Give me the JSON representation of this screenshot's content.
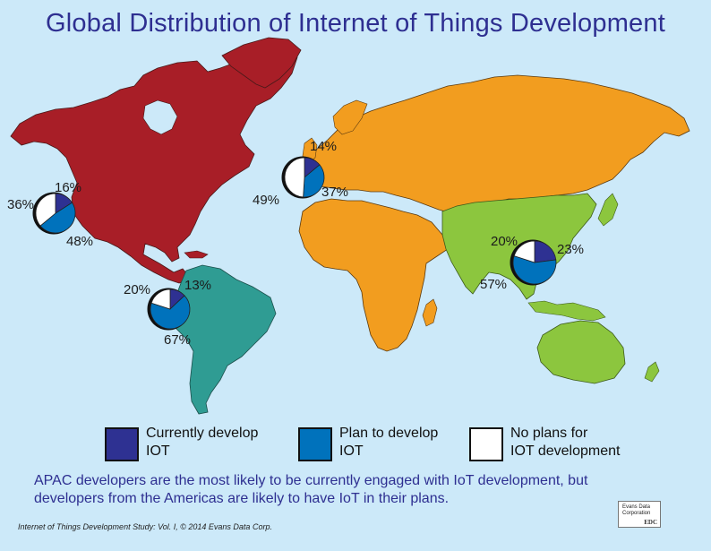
{
  "title": "Global Distribution of Internet of Things Development",
  "colors": {
    "ocean": "#cce9f9",
    "north_america": "#a81e27",
    "south_america": "#2f9c93",
    "europe_africa_russia": "#f29d1f",
    "apac": "#8cc63e",
    "currently_develop": "#2e3192",
    "plan_to_develop": "#0072bc",
    "no_plans": "#ffffff"
  },
  "regions": [
    {
      "name": "North America",
      "currently": "16%",
      "plan": "48%",
      "no_plans": "36%",
      "values": [
        16,
        48,
        36
      ]
    },
    {
      "name": "Europe/Middle East/Africa",
      "currently": "14%",
      "plan": "37%",
      "no_plans": "49%",
      "values": [
        14,
        37,
        49
      ]
    },
    {
      "name": "South America",
      "currently": "13%",
      "plan": "67%",
      "no_plans": "20%",
      "values": [
        13,
        67,
        20
      ]
    },
    {
      "name": "APAC",
      "currently": "23%",
      "plan": "57%",
      "no_plans": "20%",
      "values": [
        23,
        57,
        20
      ]
    }
  ],
  "legend": {
    "currently": {
      "line1": "Currently develop",
      "line2": "IOT"
    },
    "plan": {
      "line1": "Plan to develop",
      "line2": "IOT"
    },
    "no_plans": {
      "line1": "No plans for",
      "line2": "IOT development"
    }
  },
  "caption": {
    "line1": "APAC developers are the most likely to be currently engaged with IoT development, but",
    "line2": "developers from the Americas are likely to have IoT in their plans."
  },
  "footnote": "Internet of Things Development Study: Vol. I, © 2014 Evans Data Corp.",
  "logo": {
    "line1": "Evans Data",
    "line2": "Corporation",
    "abbr": "EDC"
  }
}
